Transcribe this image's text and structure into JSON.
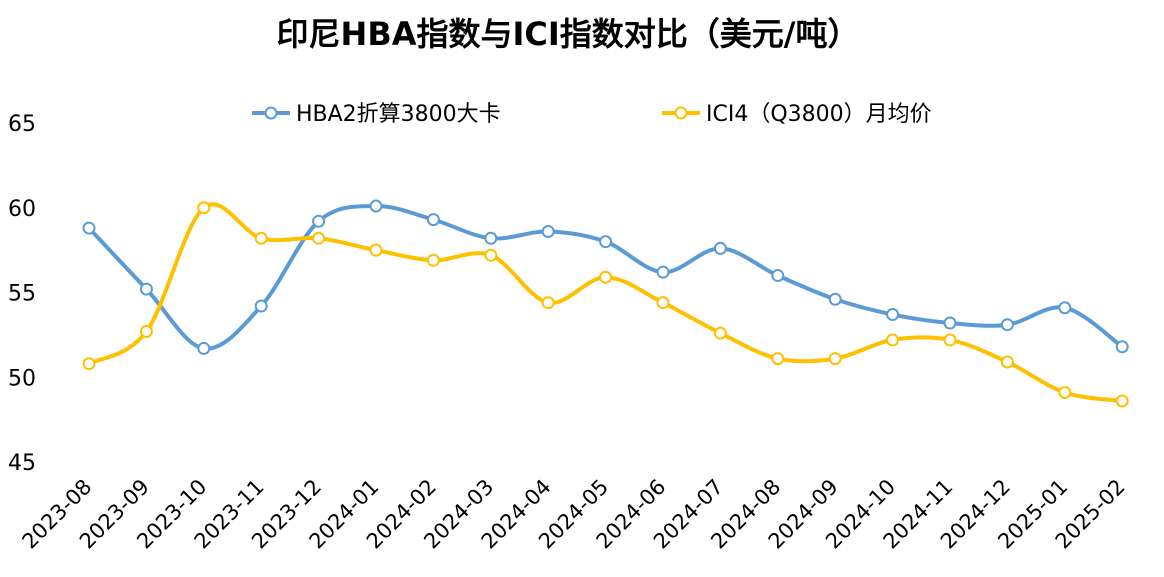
{
  "chart_data": {
    "type": "line",
    "title": "印尼HBA指数与ICI指数对比（美元/吨）",
    "categories": [
      "2023-08",
      "2023-09",
      "2023-10",
      "2023-11",
      "2023-12",
      "2024-01",
      "2024-02",
      "2024-03",
      "2024-04",
      "2024-05",
      "2024-06",
      "2024-07",
      "2024-08",
      "2024-09",
      "2024-10",
      "2024-11",
      "2024-12",
      "2025-01",
      "2025-02"
    ],
    "y_ticks": [
      "65",
      "60",
      "55",
      "50",
      "45"
    ],
    "ylim": [
      45,
      65
    ],
    "grid": false,
    "legend_position": "top",
    "series": [
      {
        "name": "HBA2折算3800大卡",
        "color": "#5b9bd5",
        "values": [
          58.8,
          55.2,
          51.7,
          54.2,
          59.2,
          60.1,
          59.3,
          58.2,
          58.6,
          58.0,
          56.2,
          57.6,
          56.0,
          54.6,
          53.7,
          53.2,
          53.1,
          54.1,
          51.8
        ]
      },
      {
        "name": "ICI4（Q3800）月均价",
        "color": "#ffc000",
        "values": [
          50.8,
          52.7,
          60.0,
          58.2,
          58.2,
          57.5,
          56.9,
          57.2,
          54.4,
          55.9,
          54.4,
          52.6,
          51.1,
          51.1,
          52.2,
          52.2,
          50.9,
          49.1,
          48.6
        ]
      }
    ]
  }
}
